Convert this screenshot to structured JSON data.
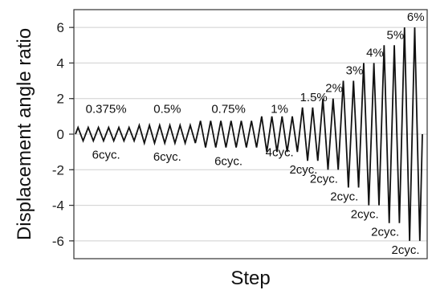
{
  "chart_data": {
    "type": "line",
    "title": "",
    "xlabel": "Step",
    "ylabel": "Displacement angle ratio",
    "ylim": [
      -7,
      7
    ],
    "yticks": [
      6,
      4,
      2,
      0,
      -2,
      -4,
      -6
    ],
    "ytick_labels": [
      "6",
      "4",
      "2",
      "0",
      "-2",
      "-4",
      "-6"
    ],
    "grid": "horizontal",
    "legend": "none",
    "series_color": "#111111",
    "stages": [
      {
        "amplitude": 0.375,
        "cycles": 6,
        "amplitude_label": "0.375%",
        "cycles_label": "6cyc."
      },
      {
        "amplitude": 0.5,
        "cycles": 6,
        "amplitude_label": "0.5%",
        "cycles_label": "6cyc."
      },
      {
        "amplitude": 0.75,
        "cycles": 6,
        "amplitude_label": "0.75%",
        "cycles_label": "6cyc."
      },
      {
        "amplitude": 1,
        "cycles": 4,
        "amplitude_label": "1%",
        "cycles_label": "4cyc."
      },
      {
        "amplitude": 1.5,
        "cycles": 2,
        "amplitude_label": "1.5%",
        "cycles_label": "2cyc."
      },
      {
        "amplitude": 2,
        "cycles": 2,
        "amplitude_label": "2%",
        "cycles_label": "2cyc."
      },
      {
        "amplitude": 3,
        "cycles": 2,
        "amplitude_label": "3%",
        "cycles_label": "2cyc."
      },
      {
        "amplitude": 4,
        "cycles": 2,
        "amplitude_label": "4%",
        "cycles_label": "2cyc."
      },
      {
        "amplitude": 5,
        "cycles": 2,
        "amplitude_label": "5%",
        "cycles_label": "2cyc."
      },
      {
        "amplitude": 6,
        "cycles": 2,
        "amplitude_label": "6%",
        "cycles_label": "2cyc."
      }
    ]
  }
}
